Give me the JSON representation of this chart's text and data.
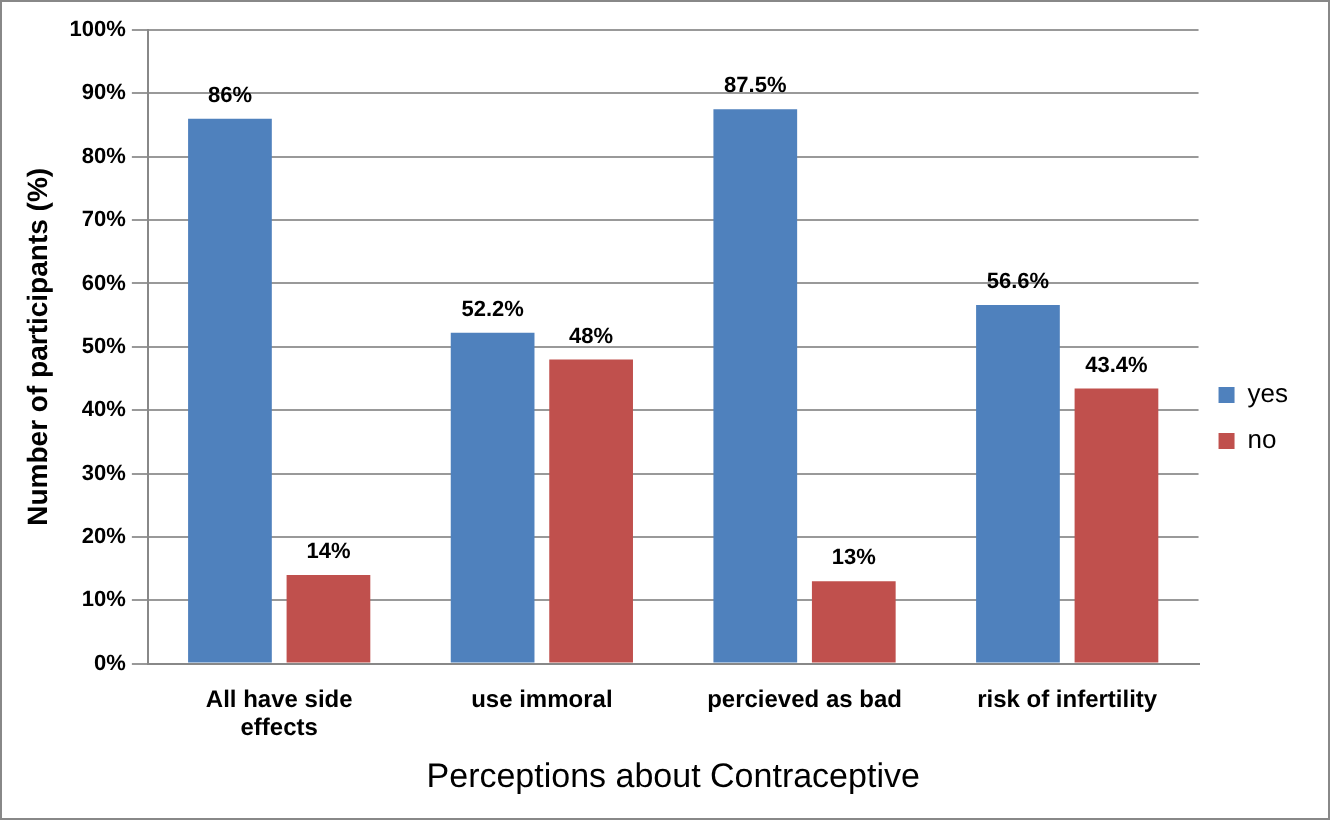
{
  "chart_data": {
    "type": "bar",
    "xlabel": "Perceptions about Contraceptive",
    "ylabel": "Number of participants (%)",
    "categories": [
      "All have side effects",
      "use immoral",
      "percieved as bad",
      "risk of infertility"
    ],
    "series": [
      {
        "name": "yes",
        "color": "#4f81bd",
        "values": [
          86,
          52.2,
          87.5,
          56.6
        ],
        "value_labels": [
          "86%",
          "52.2%",
          "87.5%",
          "56.6%"
        ]
      },
      {
        "name": "no",
        "color": "#c0504d",
        "values": [
          14,
          48,
          13,
          43.4
        ],
        "value_labels": [
          "14%",
          "48%",
          "13%",
          "43.4%"
        ]
      }
    ],
    "ylim": [
      0,
      100
    ],
    "yticks": [
      {
        "value": 0,
        "label": "0%"
      },
      {
        "value": 10,
        "label": "10%"
      },
      {
        "value": 20,
        "label": "20%"
      },
      {
        "value": 30,
        "label": "30%"
      },
      {
        "value": 40,
        "label": "40%"
      },
      {
        "value": 50,
        "label": "50%"
      },
      {
        "value": 60,
        "label": "60%"
      },
      {
        "value": 70,
        "label": "70%"
      },
      {
        "value": 80,
        "label": "80%"
      },
      {
        "value": 90,
        "label": "90%"
      },
      {
        "value": 100,
        "label": "100%"
      }
    ],
    "grid": "y",
    "legend": "right"
  }
}
